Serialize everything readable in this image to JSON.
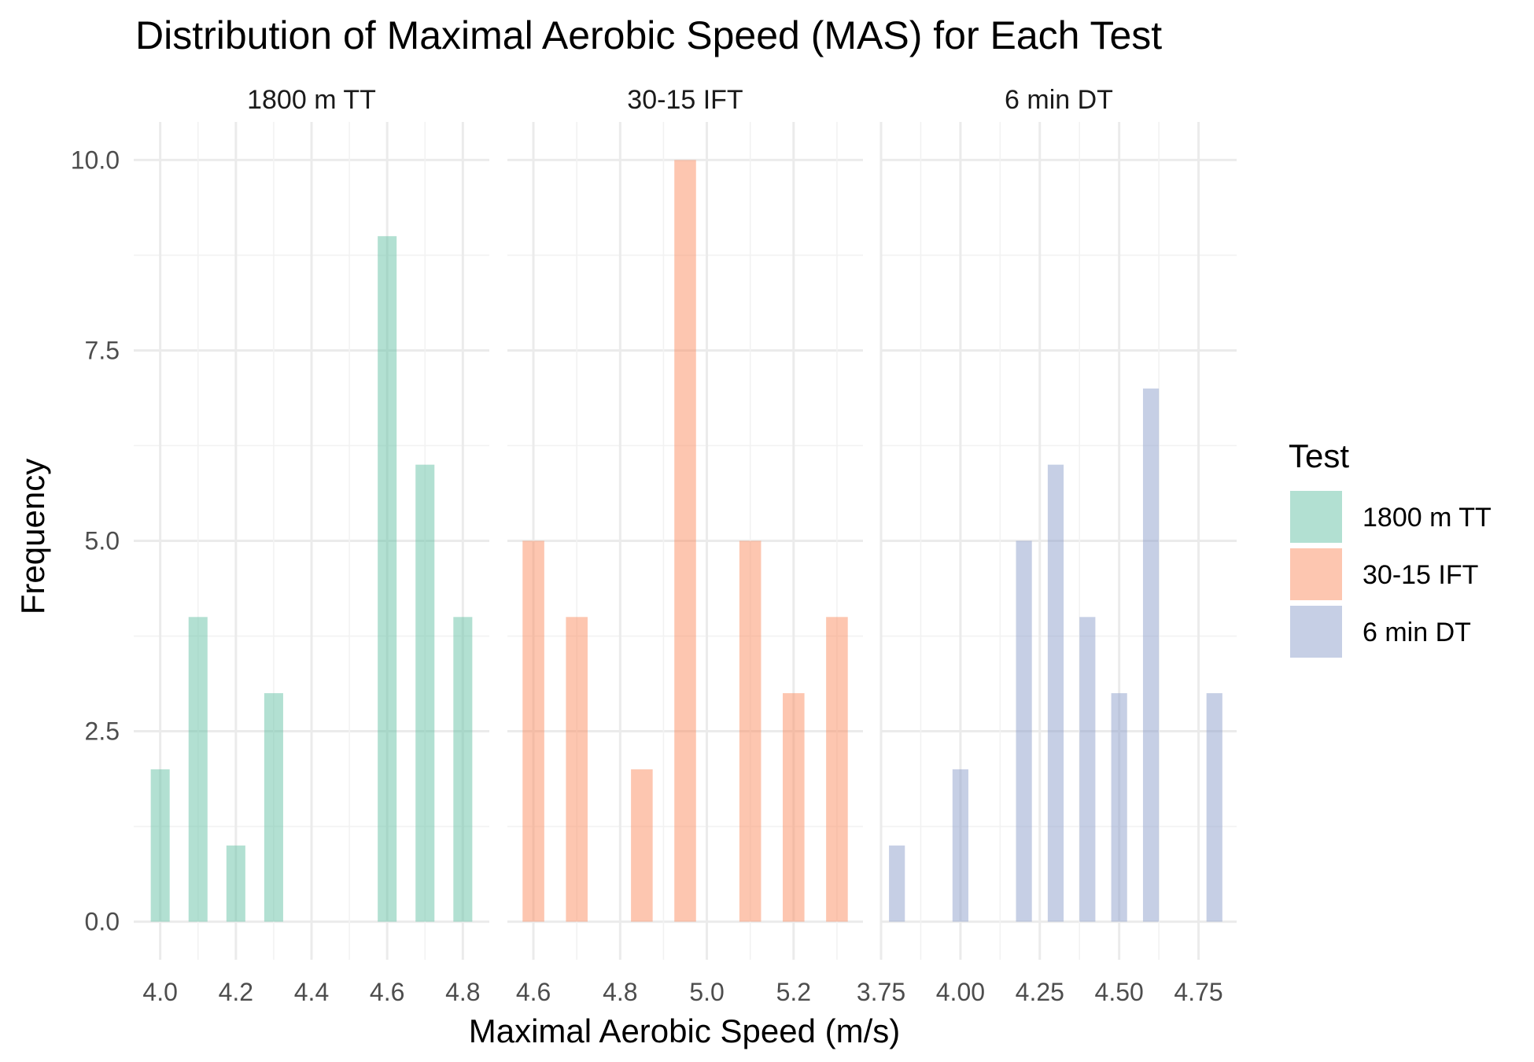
{
  "chart_data": {
    "type": "bar",
    "title": "Distribution of Maximal Aerobic Speed (MAS) for Each Test",
    "xlabel": "Maximal Aerobic Speed (m/s)",
    "ylabel": "Frequency",
    "ylim": [
      -0.5,
      10.5
    ],
    "y_ticks": [
      "0.0",
      "2.5",
      "5.0",
      "7.5",
      "10.0"
    ],
    "grid": true,
    "legend": {
      "title": "Test",
      "position": "right",
      "entries": [
        "1800 m TT",
        "30-15 IFT",
        "6 min DT"
      ]
    },
    "panels": [
      {
        "name": "1800 m TT",
        "color": "#66C2A5",
        "xlim": [
          3.93,
          4.87
        ],
        "x_ticks": [
          "4.0",
          "4.2",
          "4.4",
          "4.6",
          "4.8"
        ],
        "bar_width": 0.05,
        "x": [
          4.0,
          4.1,
          4.2,
          4.3,
          4.6,
          4.7,
          4.8
        ],
        "values": [
          2,
          4,
          1,
          3,
          9,
          6,
          4
        ]
      },
      {
        "name": "30-15 IFT",
        "color": "#FC8D62",
        "xlim": [
          4.54,
          5.36
        ],
        "x_ticks": [
          "4.6",
          "4.8",
          "5.0",
          "5.2"
        ],
        "bar_width": 0.05,
        "x": [
          4.6,
          4.7,
          4.85,
          4.95,
          5.1,
          5.2,
          5.3
        ],
        "values": [
          5,
          4,
          2,
          10,
          5,
          3,
          4
        ]
      },
      {
        "name": "6 min DT",
        "color": "#8DA0CB",
        "xlim": [
          3.75,
          4.87
        ],
        "x_ticks": [
          "3.75",
          "4.00",
          "4.25",
          "4.50",
          "4.75"
        ],
        "bar_width": 0.05,
        "x": [
          3.8,
          4.0,
          4.2,
          4.3,
          4.4,
          4.5,
          4.6,
          4.8
        ],
        "values": [
          1,
          2,
          5,
          6,
          4,
          3,
          7,
          3
        ]
      }
    ]
  }
}
